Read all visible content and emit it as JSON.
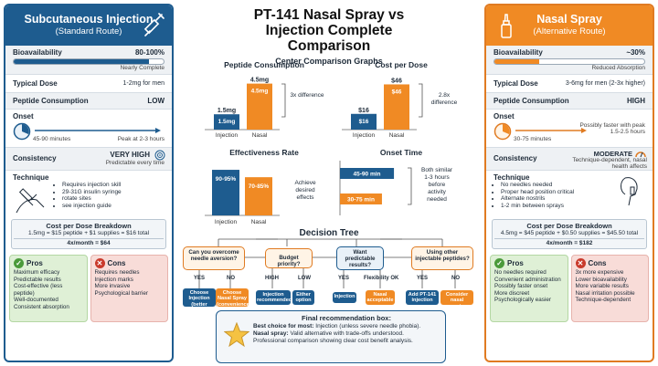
{
  "title": "PT-141 Nasal Spray vs Injection Complete Comparison",
  "charts_heading": "Center Comparison Graphs",
  "left": {
    "title": "Subcutaneous Injection",
    "subtitle": "(Standard Route)",
    "bioavailability_label": "Bioavailability",
    "bioavailability_value": "80-100%",
    "bioavailability_fill": 0.9,
    "bioavailability_note": "Nearly Complete",
    "dose_label": "Typical Dose",
    "dose_value": "1-2mg for men",
    "consumption_label": "Peptide Consumption",
    "consumption_value": "LOW",
    "onset_label": "Onset",
    "onset_start": "45-90 minutes",
    "onset_peak": "Peak at 2-3 hours",
    "consistency_label": "Consistency",
    "consistency_value": "VERY HIGH",
    "consistency_note": "Predictable every time",
    "technique_label": "Technique",
    "technique_items": [
      "Requires injection skill",
      "29-31G insulin syringe",
      "rotate sites",
      "see injection guide"
    ],
    "cost_title": "Cost per Dose Breakdown",
    "cost_line": "1.5mg = $15 peptide + $1 supplies = $16 total",
    "cost_month": "4x/month = $64",
    "pros_title": "Pros",
    "pros": [
      "Maximum efficacy",
      "Predictable results",
      "Cost-effective (less peptide)",
      "Well-documented",
      "Consistent absorption"
    ],
    "cons_title": "Cons",
    "cons": [
      "Requires needles",
      "Injection marks",
      "More invasive",
      "Psychological barrier"
    ]
  },
  "right": {
    "title": "Nasal Spray",
    "subtitle": "(Alternative Route)",
    "bioavailability_label": "Bioavailability",
    "bioavailability_value": "~30%",
    "bioavailability_fill": 0.3,
    "bioavailability_note": "Reduced Absorption",
    "dose_label": "Typical Dose",
    "dose_value": "3-6mg for men (2-3x higher)",
    "consumption_label": "Peptide Consumption",
    "consumption_value": "HIGH",
    "onset_label": "Onset",
    "onset_start": "30-75 minutes",
    "onset_peak": "Possibly faster with peak 1.5-2.5 hours",
    "consistency_label": "Consistency",
    "consistency_value": "MODERATE",
    "consistency_note": "Technique-dependent, nasal health affects",
    "technique_label": "Technique",
    "technique_items": [
      "No needles needed",
      "Proper head position critical",
      "Alternate nostrils",
      "1-2 min between sprays"
    ],
    "cost_title": "Cost per Dose Breakdown",
    "cost_line": "4.5mg = $45 peptide + $0.50 supplies = $45.50 total",
    "cost_month": "4x/month = $182",
    "pros_title": "Pros",
    "pros": [
      "No needles required",
      "Convenient administration",
      "Possibly faster onset",
      "More discreet",
      "Psychologically easier"
    ],
    "cons_title": "Cons",
    "cons": [
      "3x more expensive",
      "Lower bioavailability",
      "More variable results",
      "Nasal irritation possible",
      "Technique-dependent"
    ]
  },
  "chart_data": [
    {
      "type": "bar",
      "title": "Peptide Consumption",
      "categories": [
        "Injection",
        "Nasal"
      ],
      "values": [
        1.5,
        4.5
      ],
      "value_labels": [
        "1.5mg",
        "4.5mg"
      ],
      "annotation": "3x difference",
      "colors": [
        "#1e5c8f",
        "#f08a24"
      ]
    },
    {
      "type": "bar",
      "title": "Cost per Dose",
      "categories": [
        "Injection",
        "Nasal"
      ],
      "values": [
        16,
        46
      ],
      "value_labels": [
        "$16",
        "$46"
      ],
      "annotation": "2.8x difference",
      "colors": [
        "#1e5c8f",
        "#f08a24"
      ]
    },
    {
      "type": "bar",
      "title": "Effectiveness Rate",
      "categories": [
        "Injection",
        "Nasal"
      ],
      "values": [
        92.5,
        77.5
      ],
      "value_labels": [
        "90-95%",
        "70-85%"
      ],
      "annotation": "Achieve desired effects",
      "colors": [
        "#1e5c8f",
        "#f08a24"
      ]
    },
    {
      "type": "bar",
      "title": "Onset Time",
      "orientation": "horizontal",
      "categories": [
        "Injection",
        "Nasal"
      ],
      "values": [
        67.5,
        52.5
      ],
      "value_labels": [
        "45-90 min",
        "30-75 min"
      ],
      "annotation": "Both similar 1-3 hours before activity needed",
      "colors": [
        "#1e5c8f",
        "#f08a24"
      ]
    }
  ],
  "decision_tree": {
    "title": "Decision Tree",
    "q1": "Can you overcome needle aversion?",
    "q2": "Budget priority?",
    "q3": "Want predictable results?",
    "q4": "Using other injectable peptides?",
    "labels": {
      "yes": "YES",
      "no": "NO",
      "high": "HIGH",
      "low": "LOW",
      "flex": "Flexibility OK"
    },
    "leaves": [
      "Choose Injection (better value, efficacy)",
      "Choose Nasal Spray (convenience over cost)",
      "Injection recommended",
      "Either option",
      "Injection",
      "Nasal acceptable",
      "Add PT-141 injection",
      "Consider nasal convenience"
    ]
  },
  "final": {
    "title": "Final recommendation box:",
    "best_label": "Best choice for most:",
    "best_text": "Injection (unless severe needle phobia).",
    "nasal_label": "Nasal spray:",
    "nasal_text": "Valid alternative with trade-offs understood.",
    "footer": "Professional comparison showing clear cost benefit analysis."
  }
}
